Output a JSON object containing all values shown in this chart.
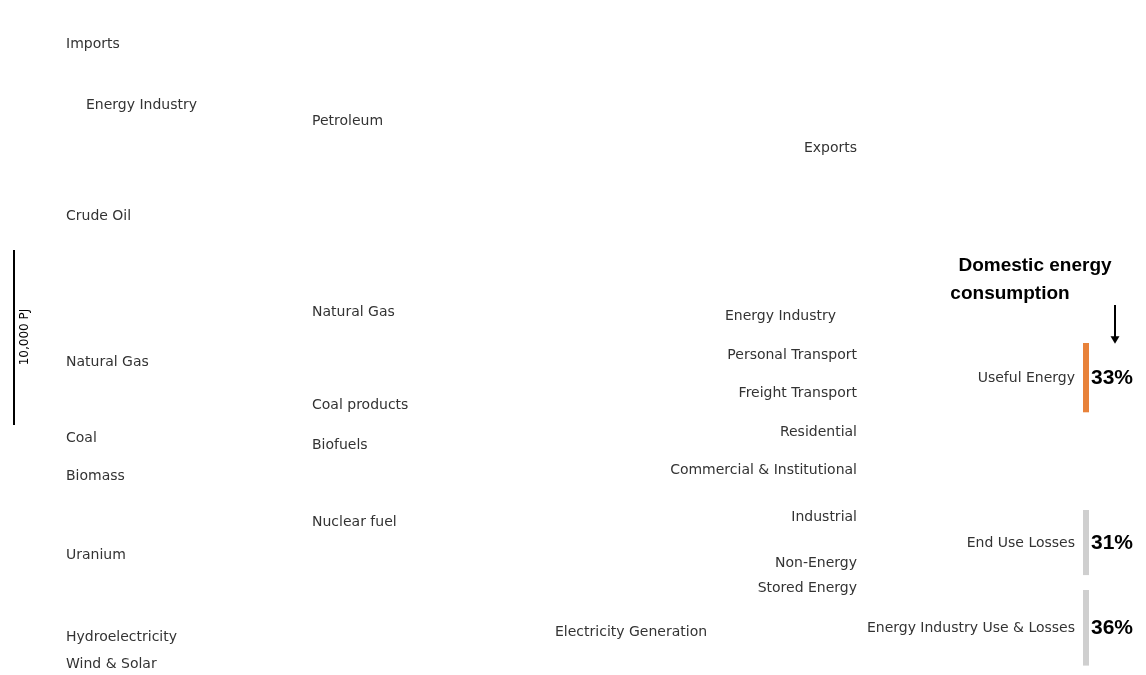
{
  "chart_data": {
    "type": "other",
    "categories": [
      "Useful Energy",
      "End Use Losses",
      "Energy Industry Use & Losses"
    ],
    "values": [
      33,
      31,
      36
    ],
    "value_labels": [
      "33%",
      "31%",
      "36%"
    ],
    "colors": [
      "#e8823a",
      "#cfcfcf",
      "#cfcfcf"
    ],
    "annotations": [
      "Imports",
      "Energy Industry",
      "Crude Oil",
      "Natural Gas",
      "Coal",
      "Biomass",
      "Uranium",
      "Hydroelectricity",
      "Wind & Solar",
      "Petroleum",
      "Natural Gas",
      "Coal products",
      "Biofuels",
      "Nuclear fuel",
      "Electricity Generation",
      "Exports",
      "Energy Industry",
      "Personal Transport",
      "Freight Transport",
      "Residential",
      "Commercial & Institutional",
      "Industrial",
      "Non-Energy",
      "Stored Energy",
      "Domestic energy consumption",
      "10,000 PJ"
    ]
  }
}
